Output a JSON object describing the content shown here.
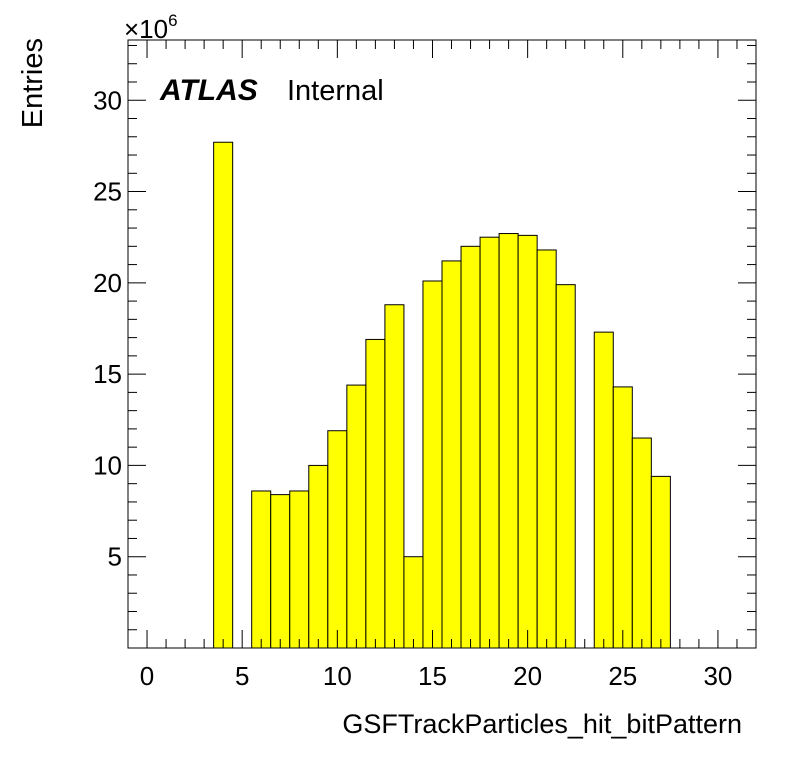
{
  "chart_data": {
    "type": "bar",
    "xlabel": "GSFTrackParticles_hit_bitPattern",
    "ylabel": "Entries",
    "y_exponent_label": "×10",
    "y_exponent_power": "6",
    "xlim": [
      -1,
      32
    ],
    "ylim": [
      0,
      33.3
    ],
    "x_ticks": [
      "0",
      "5",
      "10",
      "15",
      "20",
      "25",
      "30"
    ],
    "y_ticks": [
      "5",
      "10",
      "15",
      "20",
      "25",
      "30"
    ],
    "bin_width": 1,
    "bins": [
      {
        "x": 4,
        "value": 27.7
      },
      {
        "x": 6,
        "value": 8.6
      },
      {
        "x": 7,
        "value": 8.4
      },
      {
        "x": 8,
        "value": 8.6
      },
      {
        "x": 9,
        "value": 10.0
      },
      {
        "x": 10,
        "value": 11.9
      },
      {
        "x": 11,
        "value": 14.4
      },
      {
        "x": 12,
        "value": 16.9
      },
      {
        "x": 13,
        "value": 18.8
      },
      {
        "x": 14,
        "value": 5.0
      },
      {
        "x": 15,
        "value": 20.1
      },
      {
        "x": 16,
        "value": 21.2
      },
      {
        "x": 17,
        "value": 22.0
      },
      {
        "x": 18,
        "value": 22.5
      },
      {
        "x": 19,
        "value": 22.7
      },
      {
        "x": 20,
        "value": 22.6
      },
      {
        "x": 21,
        "value": 21.8
      },
      {
        "x": 22,
        "value": 19.9
      },
      {
        "x": 24,
        "value": 17.3
      },
      {
        "x": 25,
        "value": 14.3
      },
      {
        "x": 26,
        "value": 11.5
      },
      {
        "x": 27,
        "value": 9.4
      }
    ],
    "fill_color": "#ffff00",
    "edge_color": "#000000",
    "grid": false,
    "annotations": {
      "experiment": "ATLAS",
      "status": "Internal"
    }
  }
}
